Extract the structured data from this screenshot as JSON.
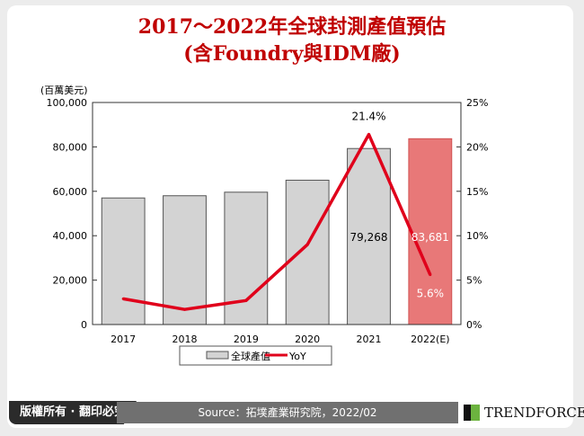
{
  "chart_data": {
    "type": "bar+line",
    "title": "2017～2022年全球封測產值預估",
    "subtitle": "(含Foundry與IDM廠)",
    "unit_label": "(百萬美元)",
    "categories": [
      "2017",
      "2018",
      "2019",
      "2020",
      "2021",
      "2022(E)"
    ],
    "series": [
      {
        "name": "全球產值",
        "type": "bar",
        "axis": "left",
        "values": [
          57000,
          58000,
          59600,
          65000,
          79268,
          83681
        ],
        "data_labels": [
          "",
          "",
          "",
          "",
          "79,268",
          "83,681"
        ]
      },
      {
        "name": "YoY",
        "type": "line",
        "axis": "right",
        "values": [
          2.9,
          1.7,
          2.7,
          9.0,
          21.4,
          5.6
        ],
        "data_labels": [
          "",
          "",
          "",
          "",
          "21.4%",
          "5.6%"
        ]
      }
    ],
    "left_axis": {
      "ylim": [
        0,
        100000
      ],
      "ticks": [
        "0",
        "20,000",
        "40,000",
        "60,000",
        "80,000",
        "100,000"
      ]
    },
    "right_axis": {
      "ylim": [
        0,
        25
      ],
      "ticks": [
        "0%",
        "5%",
        "10%",
        "15%",
        "20%",
        "25%"
      ]
    },
    "legend": "bottom",
    "grid": false,
    "colors": {
      "bar": "#d3d3d3",
      "bar_highlight": "#e87878",
      "line": "#e0001b",
      "title": "#c00000"
    }
  },
  "footer": {
    "copyright": "版權所有 · 翻印必究",
    "source": "Source：拓墣產業研究院，2022/02",
    "logo": "TRENDFORCE"
  }
}
